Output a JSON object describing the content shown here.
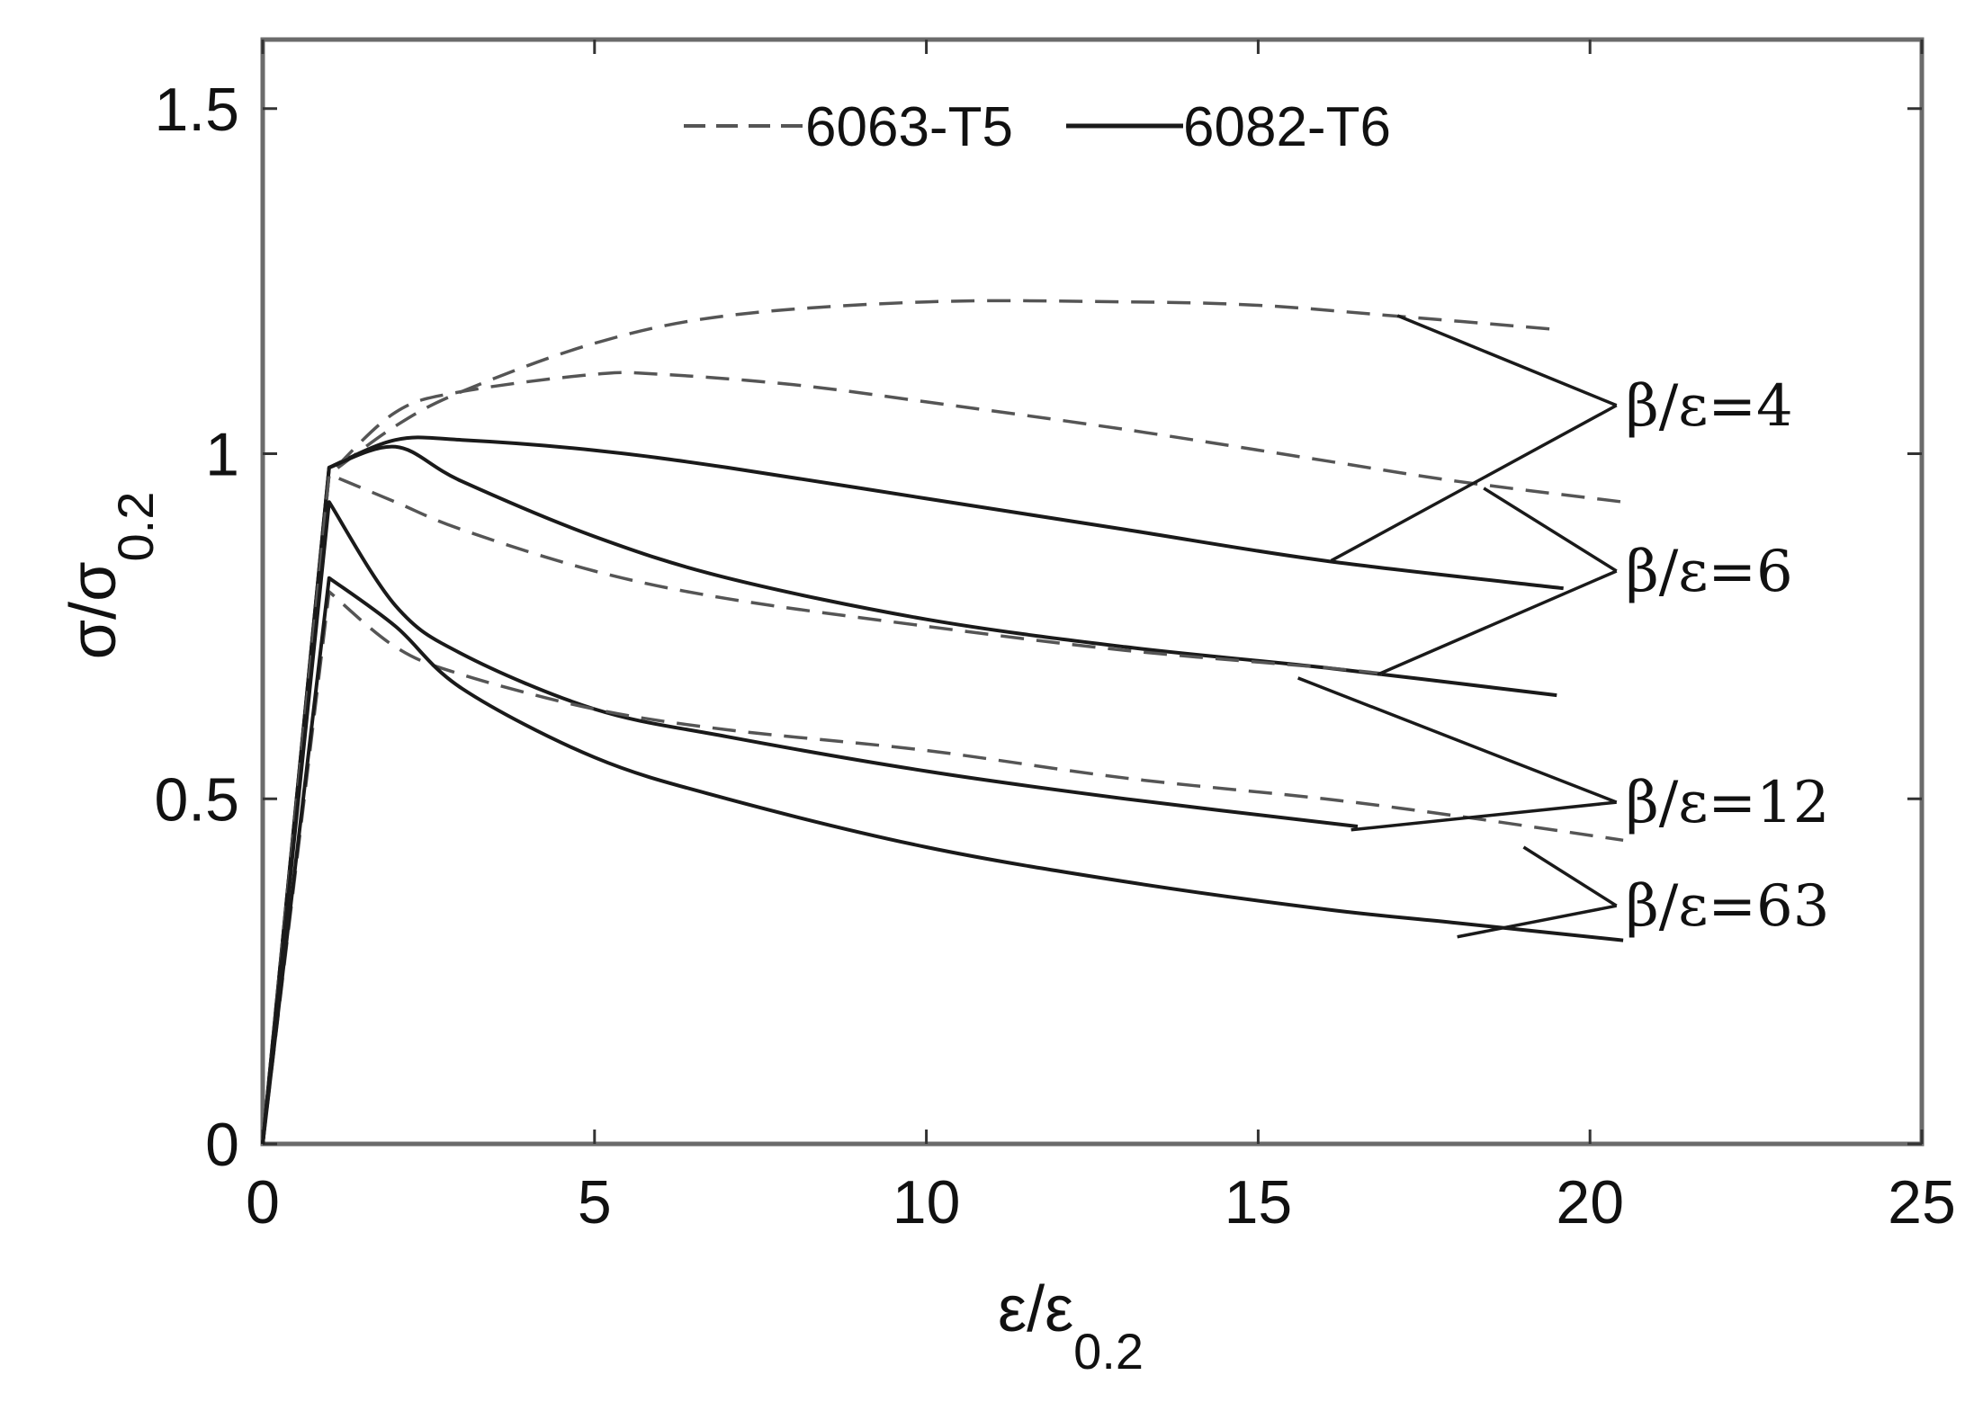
{
  "chart_data": {
    "type": "line",
    "xlabel": {
      "main": "ε/ε",
      "sub": "0.2"
    },
    "ylabel": {
      "main": "σ/σ",
      "sub": "0.2"
    },
    "xlim": [
      0,
      25
    ],
    "ylim": [
      0,
      1.6
    ],
    "xticks": [
      0,
      5,
      10,
      15,
      20,
      25
    ],
    "xtick_labels": [
      "0",
      "5",
      "10",
      "15",
      "20",
      "25"
    ],
    "yticks": [
      0,
      0.5,
      1,
      1.5
    ],
    "ytick_labels": [
      "0",
      "0.5",
      "1",
      "1.5"
    ],
    "grid": false,
    "legend": {
      "placement": "top-center",
      "entries": [
        {
          "label": "6063-T5",
          "style": "dashed"
        },
        {
          "label": "6082-T6",
          "style": "solid"
        }
      ]
    },
    "series": [
      {
        "material": "6063-T5",
        "beta_eps": "β/ε=4",
        "style": "dashed",
        "x": [
          0,
          1,
          2,
          3,
          5,
          7,
          10,
          13,
          15,
          17,
          19.5
        ],
        "y": [
          0,
          0.97,
          1.04,
          1.09,
          1.16,
          1.2,
          1.22,
          1.22,
          1.215,
          1.2,
          1.18
        ]
      },
      {
        "material": "6082-T6",
        "beta_eps": "β/ε=4",
        "style": "solid",
        "x": [
          0,
          1,
          2,
          3,
          5,
          7,
          10,
          13,
          16,
          19.6
        ],
        "y": [
          0,
          0.98,
          1.02,
          1.02,
          1.005,
          0.98,
          0.935,
          0.89,
          0.845,
          0.805
        ]
      },
      {
        "material": "6063-T5",
        "beta_eps": "β/ε=6",
        "style": "dashed",
        "x": [
          0,
          1,
          2,
          3,
          5,
          6,
          8,
          10,
          13,
          16,
          18,
          20.5
        ],
        "y": [
          0,
          0.97,
          1.06,
          1.09,
          1.115,
          1.115,
          1.1,
          1.075,
          1.035,
          0.99,
          0.96,
          0.93
        ]
      },
      {
        "material": "6082-T6",
        "beta_eps": "β/ε=6",
        "style": "solid",
        "x": [
          0,
          1,
          2,
          3,
          5,
          7,
          10,
          13,
          16,
          19.5
        ],
        "y": [
          0,
          0.98,
          1.01,
          0.96,
          0.88,
          0.82,
          0.76,
          0.72,
          0.69,
          0.65
        ]
      },
      {
        "material": "6063-T5",
        "beta_eps": "β/ε=12",
        "style": "dashed",
        "x": [
          0,
          1,
          2,
          3,
          5,
          7,
          10,
          13,
          16,
          17
        ],
        "y": [
          0,
          0.97,
          0.93,
          0.89,
          0.83,
          0.79,
          0.75,
          0.715,
          0.69,
          0.68
        ]
      },
      {
        "material": "6082-T6",
        "beta_eps": "β/ε=12",
        "style": "solid",
        "x": [
          0,
          1,
          2,
          3,
          5,
          7,
          10,
          13,
          16.5
        ],
        "y": [
          0,
          0.93,
          0.78,
          0.71,
          0.63,
          0.59,
          0.54,
          0.5,
          0.46
        ]
      },
      {
        "material": "6063-T5",
        "beta_eps": "β/ε=63",
        "style": "dashed",
        "x": [
          0,
          1,
          2,
          3,
          5,
          7,
          10,
          13,
          16,
          18,
          20.5
        ],
        "y": [
          0,
          0.8,
          0.72,
          0.68,
          0.63,
          0.6,
          0.57,
          0.53,
          0.5,
          0.475,
          0.44
        ]
      },
      {
        "material": "6082-T6",
        "beta_eps": "β/ε=63",
        "style": "solid",
        "x": [
          0,
          1,
          2,
          3,
          5,
          7,
          10,
          13,
          16,
          18,
          20.5
        ],
        "y": [
          0,
          0.82,
          0.75,
          0.66,
          0.56,
          0.5,
          0.43,
          0.38,
          0.34,
          0.32,
          0.295
        ]
      }
    ],
    "annotations": [
      {
        "text": "β/ε=4",
        "anchor": [
          20.4,
          1.07
        ],
        "pointers": [
          [
            16.1,
            0.845
          ],
          [
            17.1,
            1.2
          ]
        ]
      },
      {
        "text": "β/ε=6",
        "anchor": [
          20.4,
          0.83
        ],
        "pointers": [
          [
            16.8,
            0.68
          ],
          [
            18.4,
            0.95
          ]
        ]
      },
      {
        "text": "β/ε=12",
        "anchor": [
          20.4,
          0.495
        ],
        "pointers": [
          [
            16.4,
            0.455
          ],
          [
            15.6,
            0.675
          ]
        ]
      },
      {
        "text": "β/ε=63",
        "anchor": [
          20.4,
          0.345
        ],
        "pointers": [
          [
            18.0,
            0.3
          ],
          [
            19.0,
            0.43
          ]
        ]
      }
    ]
  }
}
